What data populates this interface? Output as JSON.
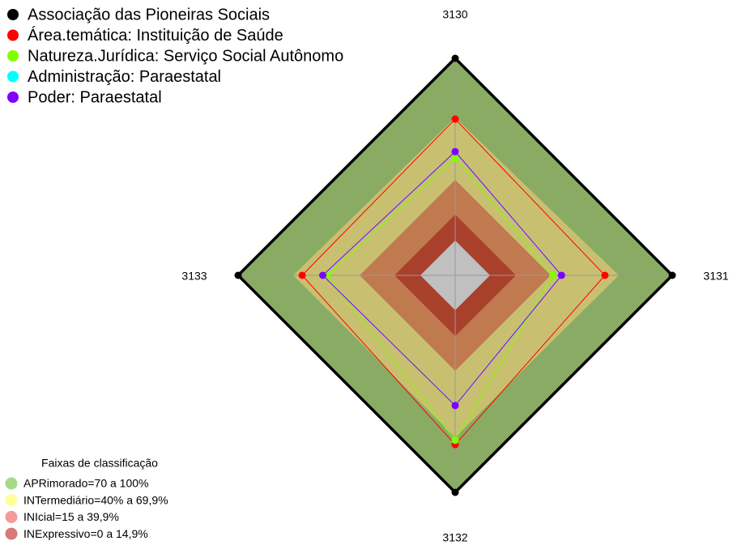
{
  "chart_data": {
    "type": "radar",
    "categories": [
      "3130",
      "3131",
      "3132",
      "3133"
    ],
    "ylim": [
      0,
      100
    ],
    "series": [
      {
        "name": "Associação das Pioneiras Sociais",
        "color": "#000000",
        "values": [
          100,
          100,
          100,
          100
        ]
      },
      {
        "name": "Área.temática: Instituição de Saúde",
        "color": "#ff0000",
        "values": [
          72,
          69,
          78,
          70.5
        ]
      },
      {
        "name": "Natureza.Jurídica: Serviço Social Autônomo",
        "color": "#80ff00",
        "values": [
          54,
          45,
          76,
          59
        ]
      },
      {
        "name": "Administração: Paraestatal",
        "color": "#00ffff",
        "values": [
          57,
          49,
          60,
          61
        ]
      },
      {
        "name": "Poder: Paraestatal",
        "color": "#8000ff",
        "values": [
          57,
          49,
          60,
          61
        ]
      }
    ],
    "band_legend": {
      "title": "Faixas de classificação",
      "items": [
        {
          "label": "APRimorado=70 a 100%",
          "color": "#a8d88a"
        },
        {
          "label": "INTermediário=40% a 69,9%",
          "color": "#ffff99"
        },
        {
          "label": "INIcial=15 a 39,9%",
          "color": "#f49a9a"
        },
        {
          "label": "INExpressivo=0 a 14,9%",
          "color": "#d87878"
        }
      ]
    }
  }
}
